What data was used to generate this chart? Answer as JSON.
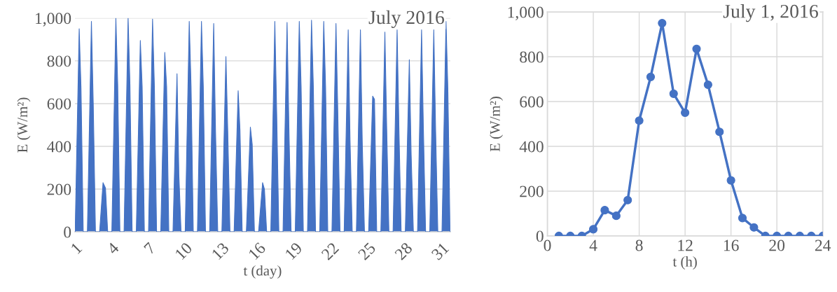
{
  "chart_data": [
    {
      "type": "area",
      "xlabel": "t (day)",
      "ylabel": "E (W/m²)",
      "annotations": [
        "July 2016"
      ],
      "xlim": [
        1,
        31.7
      ],
      "xticks": [
        1,
        4,
        7,
        10,
        13,
        16,
        19,
        22,
        25,
        28,
        31
      ],
      "ylim": [
        0,
        1000
      ],
      "yticks": [
        0,
        200,
        400,
        600,
        800,
        {
          "value": 1000,
          "label": "1,000"
        }
      ],
      "grid": "y",
      "series": [
        {
          "color": "#4472c4",
          "x": [
            1.02,
            1.35,
            1.5,
            1.68,
            2.02,
            2.35,
            2.5,
            2.68,
            3.02,
            3.3,
            3.5,
            3.68,
            4.02,
            4.35,
            4.5,
            4.68,
            5.02,
            5.35,
            5.5,
            5.68,
            6.02,
            6.35,
            6.5,
            6.68,
            7.02,
            7.35,
            7.5,
            7.68,
            8.02,
            8.35,
            8.5,
            8.68,
            9.02,
            9.35,
            9.5,
            9.68,
            10.02,
            10.35,
            10.5,
            10.68,
            11.02,
            11.35,
            11.5,
            11.68,
            12.02,
            12.35,
            12.5,
            12.68,
            13.02,
            13.35,
            13.5,
            13.68,
            14.02,
            14.35,
            14.5,
            14.68,
            15.02,
            15.35,
            15.5,
            15.68,
            16.02,
            16.35,
            16.5,
            16.68,
            17.02,
            17.35,
            17.5,
            17.68,
            18.02,
            18.35,
            18.5,
            18.68,
            19.02,
            19.35,
            19.5,
            19.68,
            20.02,
            20.35,
            20.5,
            20.68,
            21.02,
            21.35,
            21.5,
            21.68,
            22.02,
            22.35,
            22.5,
            22.68,
            23.02,
            23.35,
            23.5,
            23.68,
            24.02,
            24.35,
            24.5,
            24.68,
            25.02,
            25.35,
            25.5,
            25.68,
            26.02,
            26.35,
            26.5,
            26.68,
            27.02,
            27.35,
            27.5,
            27.68,
            28.02,
            28.35,
            28.5,
            28.68,
            29.02,
            29.35,
            29.5,
            29.68,
            30.02,
            30.35,
            30.5,
            30.68,
            31.02,
            31.35,
            31.5,
            31.68
          ],
          "values": [
            0,
            950,
            670,
            0,
            0,
            985,
            600,
            0,
            0,
            230,
            205,
            0,
            0,
            1000,
            690,
            0,
            0,
            1000,
            690,
            0,
            0,
            895,
            680,
            0,
            0,
            995,
            680,
            0,
            0,
            840,
            680,
            0,
            0,
            740,
            270,
            0,
            0,
            985,
            680,
            0,
            0,
            985,
            680,
            0,
            0,
            975,
            470,
            0,
            0,
            820,
            470,
            0,
            0,
            660,
            475,
            0,
            0,
            490,
            410,
            0,
            0,
            230,
            200,
            0,
            0,
            985,
            560,
            0,
            0,
            980,
            490,
            0,
            0,
            985,
            680,
            0,
            0,
            990,
            680,
            0,
            0,
            985,
            680,
            0,
            0,
            975,
            560,
            0,
            0,
            945,
            430,
            0,
            0,
            945,
            420,
            0,
            0,
            635,
            620,
            0,
            0,
            935,
            480,
            0,
            0,
            945,
            480,
            0,
            0,
            805,
            360,
            0,
            0,
            945,
            480,
            0,
            0,
            945,
            470,
            0,
            0,
            985,
            670,
            0
          ]
        }
      ]
    },
    {
      "type": "line",
      "xlabel": "t (h)",
      "ylabel": "E (W/m²)",
      "annotations": [
        "July 1, 2016"
      ],
      "xlim": [
        0,
        24
      ],
      "xticks": [
        0,
        4,
        8,
        12,
        16,
        20,
        24
      ],
      "ylim": [
        0,
        1000
      ],
      "yticks": [
        0,
        200,
        400,
        600,
        800,
        {
          "value": 1000,
          "label": "1,000"
        }
      ],
      "grid": true,
      "marker": "circle",
      "series": [
        {
          "color": "#4472c4",
          "x": [
            1,
            2,
            3,
            4,
            5,
            6,
            7,
            8,
            9,
            10,
            11,
            12,
            13,
            14,
            15,
            16,
            17,
            18,
            19,
            20,
            21,
            22,
            23,
            24
          ],
          "values": [
            0,
            0,
            0,
            30,
            115,
            90,
            160,
            515,
            710,
            950,
            635,
            550,
            835,
            675,
            465,
            248,
            80,
            38,
            0,
            0,
            0,
            0,
            0,
            0
          ]
        }
      ]
    }
  ]
}
